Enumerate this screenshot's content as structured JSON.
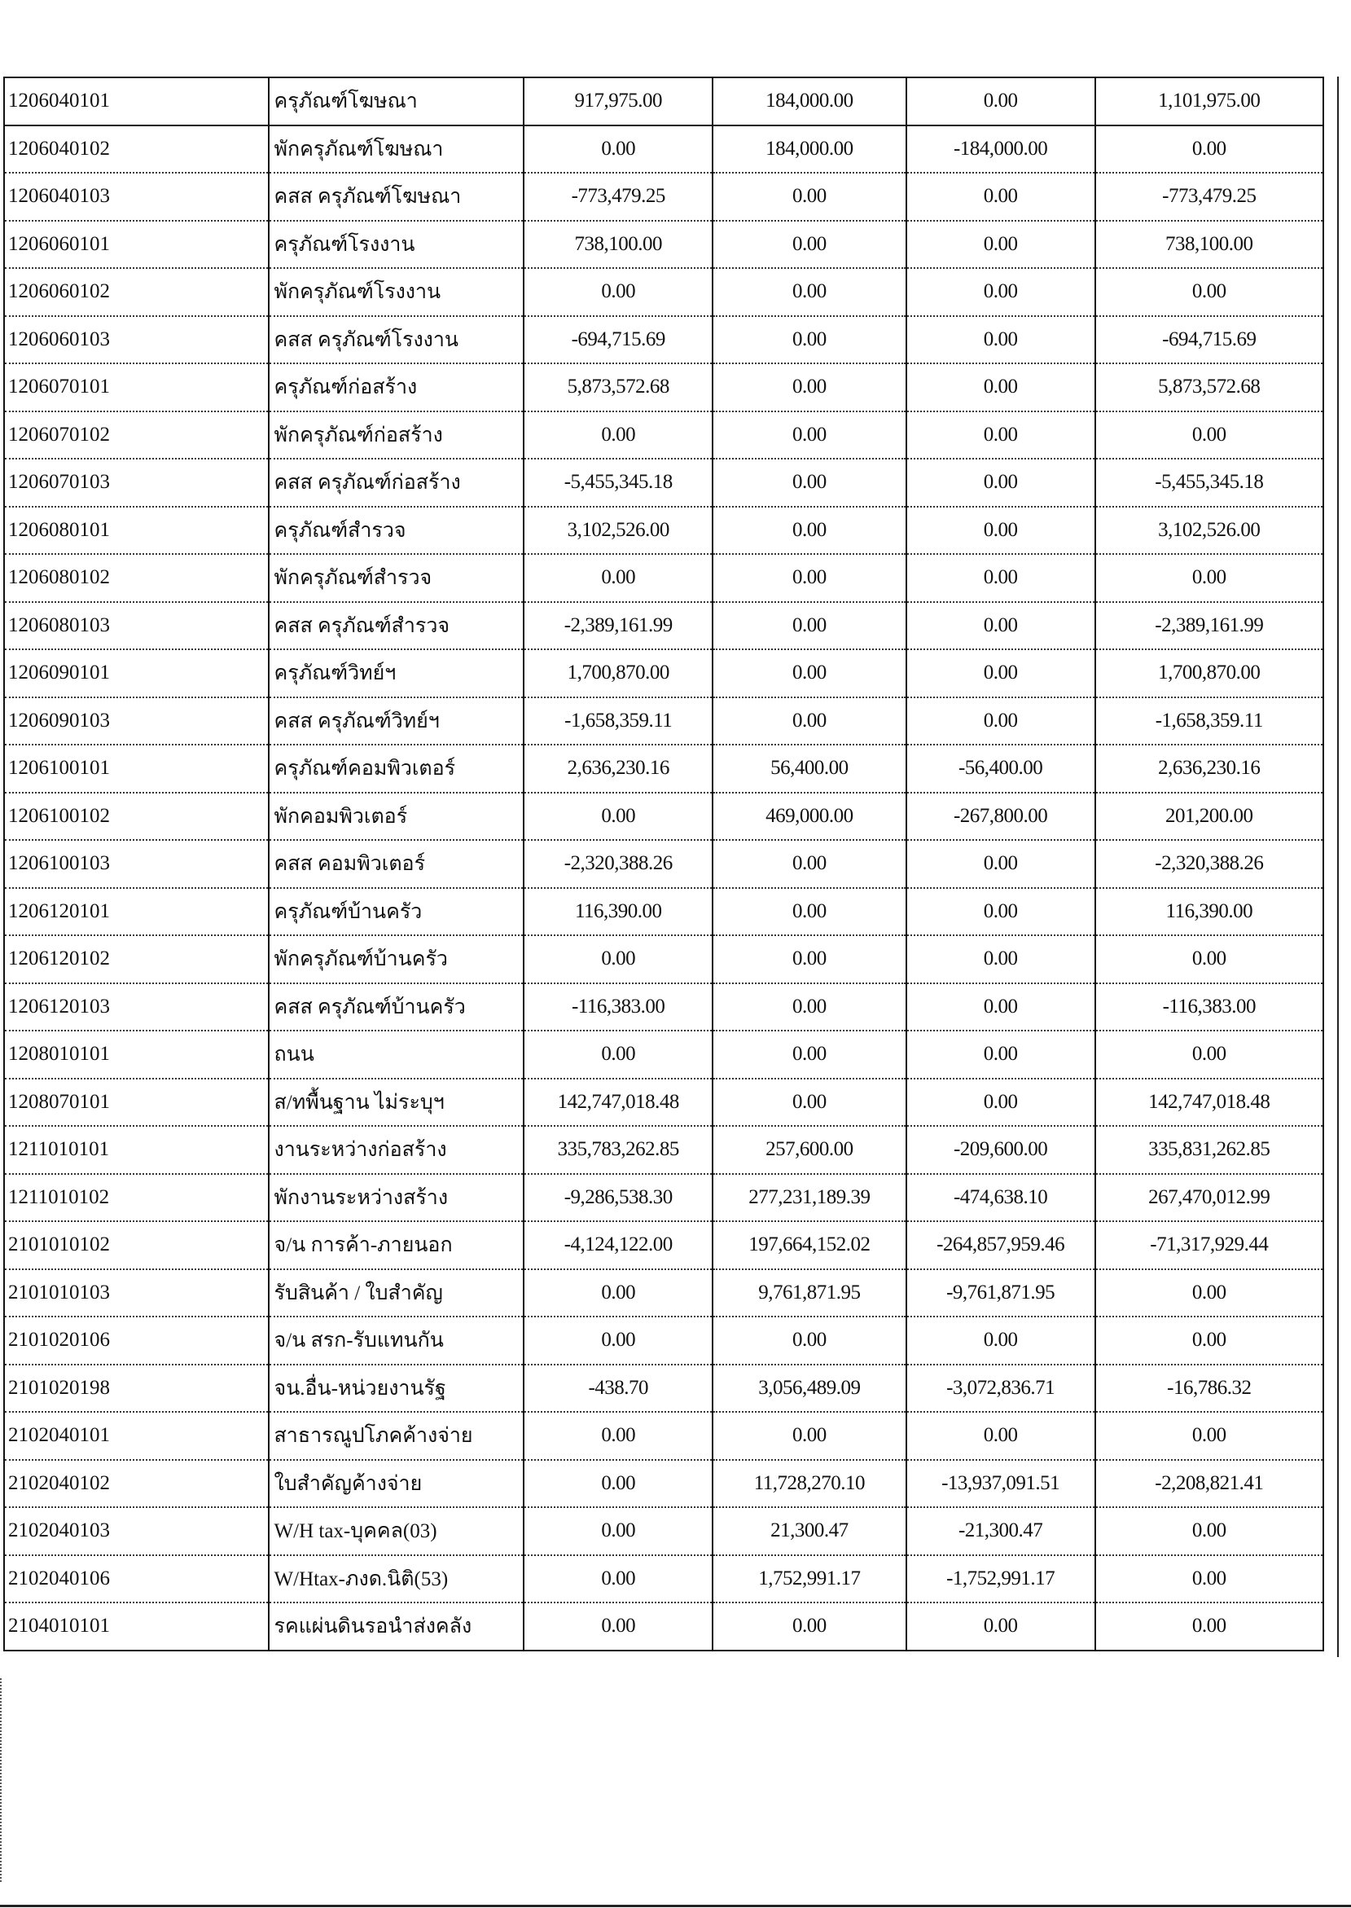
{
  "table": {
    "rows": [
      {
        "code": "1206040101",
        "name": "ครุภัณฑ์โฆษณา",
        "c1": "917,975.00",
        "c2": "184,000.00",
        "c3": "0.00",
        "c4": "1,101,975.00"
      },
      {
        "code": "1206040102",
        "name": "พักครุภัณฑ์โฆษณา",
        "c1": "0.00",
        "c2": "184,000.00",
        "c3": "-184,000.00",
        "c4": "0.00"
      },
      {
        "code": "1206040103",
        "name": "คสส ครุภัณฑ์โฆษณา",
        "c1": "-773,479.25",
        "c2": "0.00",
        "c3": "0.00",
        "c4": "-773,479.25"
      },
      {
        "code": "1206060101",
        "name": "ครุภัณฑ์โรงงาน",
        "c1": "738,100.00",
        "c2": "0.00",
        "c3": "0.00",
        "c4": "738,100.00"
      },
      {
        "code": "1206060102",
        "name": "พักครุภัณฑ์โรงงาน",
        "c1": "0.00",
        "c2": "0.00",
        "c3": "0.00",
        "c4": "0.00"
      },
      {
        "code": "1206060103",
        "name": "คสส ครุภัณฑ์โรงงาน",
        "c1": "-694,715.69",
        "c2": "0.00",
        "c3": "0.00",
        "c4": "-694,715.69"
      },
      {
        "code": "1206070101",
        "name": "ครุภัณฑ์ก่อสร้าง",
        "c1": "5,873,572.68",
        "c2": "0.00",
        "c3": "0.00",
        "c4": "5,873,572.68"
      },
      {
        "code": "1206070102",
        "name": "พักครุภัณฑ์ก่อสร้าง",
        "c1": "0.00",
        "c2": "0.00",
        "c3": "0.00",
        "c4": "0.00"
      },
      {
        "code": "1206070103",
        "name": "คสส ครุภัณฑ์ก่อสร้าง",
        "c1": "-5,455,345.18",
        "c2": "0.00",
        "c3": "0.00",
        "c4": "-5,455,345.18"
      },
      {
        "code": "1206080101",
        "name": "ครุภัณฑ์สำรวจ",
        "c1": "3,102,526.00",
        "c2": "0.00",
        "c3": "0.00",
        "c4": "3,102,526.00"
      },
      {
        "code": "1206080102",
        "name": "พักครุภัณฑ์สำรวจ",
        "c1": "0.00",
        "c2": "0.00",
        "c3": "0.00",
        "c4": "0.00"
      },
      {
        "code": "1206080103",
        "name": "คสส ครุภัณฑ์สำรวจ",
        "c1": "-2,389,161.99",
        "c2": "0.00",
        "c3": "0.00",
        "c4": "-2,389,161.99"
      },
      {
        "code": "1206090101",
        "name": "ครุภัณฑ์วิทย์ฯ",
        "c1": "1,700,870.00",
        "c2": "0.00",
        "c3": "0.00",
        "c4": "1,700,870.00"
      },
      {
        "code": "1206090103",
        "name": "คสส ครุภัณฑ์วิทย์ฯ",
        "c1": "-1,658,359.11",
        "c2": "0.00",
        "c3": "0.00",
        "c4": "-1,658,359.11"
      },
      {
        "code": "1206100101",
        "name": "ครุภัณฑ์คอมพิวเตอร์",
        "c1": "2,636,230.16",
        "c2": "56,400.00",
        "c3": "-56,400.00",
        "c4": "2,636,230.16"
      },
      {
        "code": "1206100102",
        "name": "พักคอมพิวเตอร์",
        "c1": "0.00",
        "c2": "469,000.00",
        "c3": "-267,800.00",
        "c4": "201,200.00"
      },
      {
        "code": "1206100103",
        "name": "คสส คอมพิวเตอร์",
        "c1": "-2,320,388.26",
        "c2": "0.00",
        "c3": "0.00",
        "c4": "-2,320,388.26"
      },
      {
        "code": "1206120101",
        "name": "ครุภัณฑ์บ้านครัว",
        "c1": "116,390.00",
        "c2": "0.00",
        "c3": "0.00",
        "c4": "116,390.00"
      },
      {
        "code": "1206120102",
        "name": "พักครุภัณฑ์บ้านครัว",
        "c1": "0.00",
        "c2": "0.00",
        "c3": "0.00",
        "c4": "0.00"
      },
      {
        "code": "1206120103",
        "name": "คสส ครุภัณฑ์บ้านครัว",
        "c1": "-116,383.00",
        "c2": "0.00",
        "c3": "0.00",
        "c4": "-116,383.00"
      },
      {
        "code": "1208010101",
        "name": "ถนน",
        "c1": "0.00",
        "c2": "0.00",
        "c3": "0.00",
        "c4": "0.00"
      },
      {
        "code": "1208070101",
        "name": "ส/ทพื้นฐาน ไม่ระบุฯ",
        "c1": "142,747,018.48",
        "c2": "0.00",
        "c3": "0.00",
        "c4": "142,747,018.48"
      },
      {
        "code": "1211010101",
        "name": "งานระหว่างก่อสร้าง",
        "c1": "335,783,262.85",
        "c2": "257,600.00",
        "c3": "-209,600.00",
        "c4": "335,831,262.85"
      },
      {
        "code": "1211010102",
        "name": "พักงานระหว่างสร้าง",
        "c1": "-9,286,538.30",
        "c2": "277,231,189.39",
        "c3": "-474,638.10",
        "c4": "267,470,012.99"
      },
      {
        "code": "2101010102",
        "name": "จ/น การค้า-ภายนอก",
        "c1": "-4,124,122.00",
        "c2": "197,664,152.02",
        "c3": "-264,857,959.46",
        "c4": "-71,317,929.44"
      },
      {
        "code": "2101010103",
        "name": "รับสินค้า / ใบสำคัญ",
        "c1": "0.00",
        "c2": "9,761,871.95",
        "c3": "-9,761,871.95",
        "c4": "0.00"
      },
      {
        "code": "2101020106",
        "name": "จ/น สรก-รับแทนกัน",
        "c1": "0.00",
        "c2": "0.00",
        "c3": "0.00",
        "c4": "0.00"
      },
      {
        "code": "2101020198",
        "name": "จน.อื่น-หน่วยงานรัฐ",
        "c1": "-438.70",
        "c2": "3,056,489.09",
        "c3": "-3,072,836.71",
        "c4": "-16,786.32"
      },
      {
        "code": "2102040101",
        "name": "สาธารณูปโภคค้างจ่าย",
        "c1": "0.00",
        "c2": "0.00",
        "c3": "0.00",
        "c4": "0.00"
      },
      {
        "code": "2102040102",
        "name": "ใบสำคัญค้างจ่าย",
        "c1": "0.00",
        "c2": "11,728,270.10",
        "c3": "-13,937,091.51",
        "c4": "-2,208,821.41"
      },
      {
        "code": "2102040103",
        "name": "W/H tax-บุคคล(03)",
        "c1": "0.00",
        "c2": "21,300.47",
        "c3": "-21,300.47",
        "c4": "0.00"
      },
      {
        "code": "2102040106",
        "name": "W/Htax-ภงด.นิติ(53)",
        "c1": "0.00",
        "c2": "1,752,991.17",
        "c3": "-1,752,991.17",
        "c4": "0.00"
      },
      {
        "code": "2104010101",
        "name": "รคแผ่นดินรอนำส่งคลัง",
        "c1": "0.00",
        "c2": "0.00",
        "c3": "0.00",
        "c4": "0.00"
      }
    ]
  }
}
